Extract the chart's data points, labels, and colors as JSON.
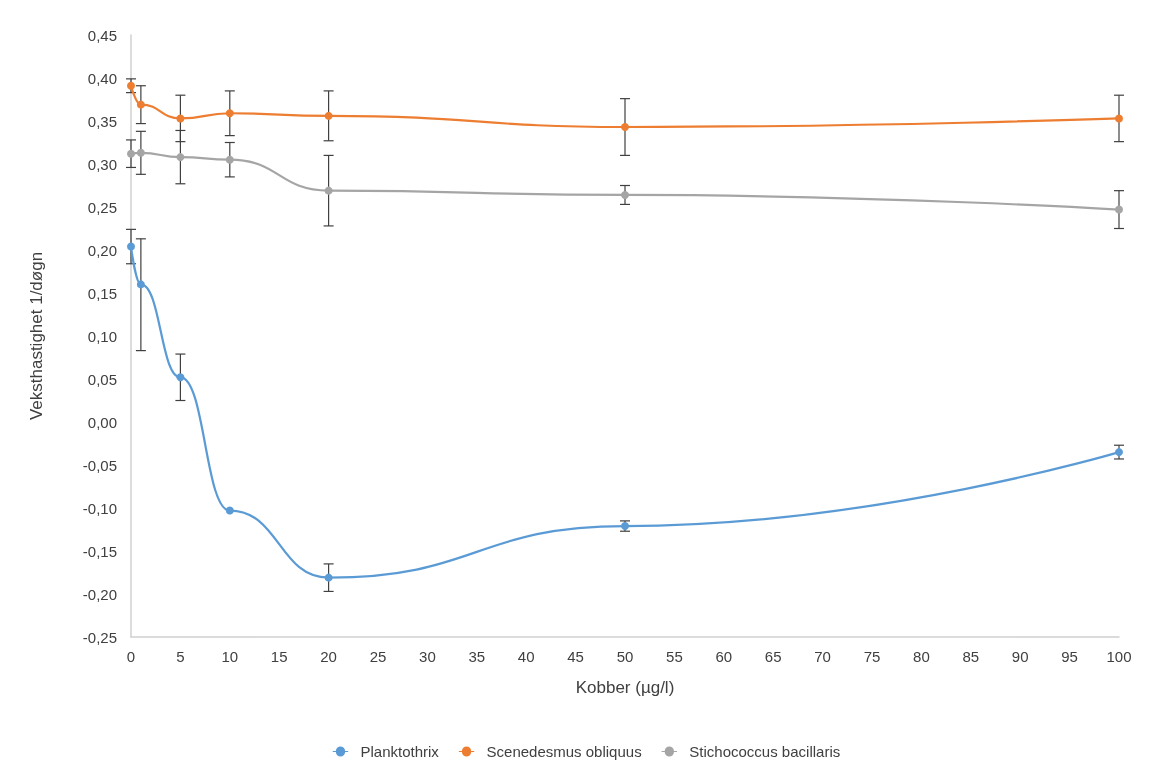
{
  "chart_data": {
    "type": "line",
    "xlabel": "Kobber (µg/l)",
    "ylabel": "Veksthastighet 1/døgn",
    "x": [
      0,
      1,
      5,
      10,
      20,
      50,
      100
    ],
    "series": [
      {
        "name": "Planktothrix",
        "color": "#5b9bd5",
        "values": [
          0.204,
          0.16,
          0.052,
          -0.103,
          -0.181,
          -0.121,
          -0.035
        ],
        "errors": [
          0.02,
          [
            0.083,
            0.213
          ],
          0.027,
          null,
          0.016,
          0.006,
          0.008
        ]
      },
      {
        "name": "Scenedesmus obliquus",
        "color": "#ed7d31",
        "values": [
          0.391,
          0.369,
          0.353,
          0.359,
          0.356,
          0.343,
          0.353
        ],
        "errors": [
          0.008,
          0.022,
          0.027,
          0.026,
          0.029,
          0.033,
          0.027
        ]
      },
      {
        "name": "Stichococcus bacillaris",
        "color": "#a5a5a5",
        "values": [
          0.312,
          0.313,
          0.308,
          0.305,
          0.269,
          0.264,
          0.247
        ],
        "errors": [
          0.016,
          0.025,
          0.031,
          0.02,
          0.041,
          0.011,
          0.022
        ]
      }
    ],
    "xlim": [
      0,
      100
    ],
    "xticks": [
      0,
      5,
      10,
      15,
      20,
      25,
      30,
      35,
      40,
      45,
      50,
      55,
      60,
      65,
      70,
      75,
      80,
      85,
      90,
      95,
      100
    ],
    "ylim": [
      -0.25,
      0.45
    ],
    "yticks": [
      {
        "value": -0.25,
        "label": "-0,25"
      },
      {
        "value": -0.2,
        "label": "-0,20"
      },
      {
        "value": -0.15,
        "label": "-0,15"
      },
      {
        "value": -0.1,
        "label": "-0,10"
      },
      {
        "value": -0.05,
        "label": "-0,05"
      },
      {
        "value": 0,
        "label": "0,00"
      },
      {
        "value": 0.05,
        "label": "0,05"
      },
      {
        "value": 0.1,
        "label": "0,10"
      },
      {
        "value": 0.15,
        "label": "0,15"
      },
      {
        "value": 0.2,
        "label": "0,20"
      },
      {
        "value": 0.25,
        "label": "0,25"
      },
      {
        "value": 0.3,
        "label": "0,30"
      },
      {
        "value": 0.35,
        "label": "0,35"
      },
      {
        "value": 0.4,
        "label": "0,40"
      },
      {
        "value": 0.45,
        "label": "0,45"
      }
    ],
    "grid": false,
    "legend": "bottom",
    "marker": "circle",
    "line_style": "solid"
  }
}
